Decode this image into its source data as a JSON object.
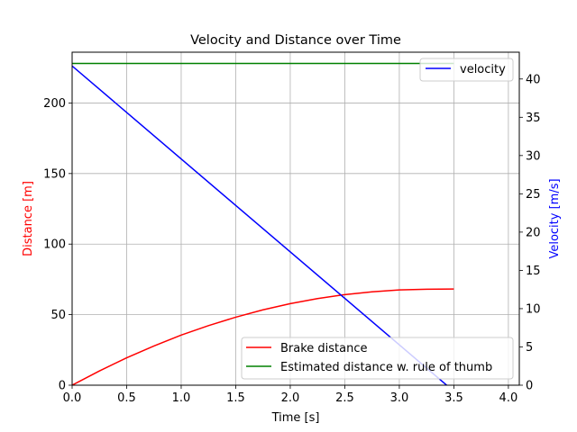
{
  "chart_data": {
    "type": "line",
    "title": "Velocity and Distance over Time",
    "xlabel": "Time [s]",
    "ylabel_left": "Distance [m]",
    "ylabel_right": "Velocity [m/s]",
    "xlim": [
      0,
      4.1
    ],
    "ylim_left": [
      0,
      236
    ],
    "ylim_right": [
      0,
      43.5
    ],
    "x_ticks": [
      0,
      0.5,
      1.0,
      1.5,
      2.0,
      2.5,
      3.0,
      3.5,
      4.0
    ],
    "x_tick_labels": [
      "0.0",
      "0.5",
      "1.0",
      "1.5",
      "2.0",
      "2.5",
      "3.0",
      "3.5",
      "4.0"
    ],
    "y_left_ticks": [
      0,
      50,
      100,
      150,
      200
    ],
    "y_left_tick_labels": [
      "0",
      "50",
      "100",
      "150",
      "200"
    ],
    "y_right_ticks": [
      0,
      5,
      10,
      15,
      20,
      25,
      30,
      35,
      40
    ],
    "y_right_tick_labels": [
      "0",
      "5",
      "10",
      "15",
      "20",
      "25",
      "30",
      "35",
      "40"
    ],
    "grid": true,
    "colors": {
      "left_label": "#ff0000",
      "right_label": "#0000ff"
    },
    "series_left": [
      {
        "name": "Brake distance",
        "color": "#ff0000",
        "x": [
          0,
          0.25,
          0.5,
          0.75,
          1.0,
          1.25,
          1.5,
          1.75,
          2.0,
          2.25,
          2.5,
          2.75,
          3.0,
          3.25,
          3.5
        ],
        "y": [
          0,
          10.1,
          19.4,
          27.8,
          35.5,
          42.2,
          48.2,
          53.4,
          57.8,
          61.4,
          64.2,
          66.2,
          67.5,
          68.0,
          68.2
        ]
      },
      {
        "name": "Estimated distance w. rule of thumb",
        "color": "#008000",
        "x": [
          0,
          3.5
        ],
        "y": [
          228,
          228
        ]
      }
    ],
    "series_right": [
      {
        "name": "velocity",
        "color": "#0000ff",
        "x": [
          0,
          3.5
        ],
        "y": [
          41.7,
          -0.8
        ]
      }
    ],
    "legend_upper": {
      "placement": "top-right",
      "entries": [
        "velocity"
      ]
    },
    "legend_lower": {
      "placement": "bottom-right",
      "entries": [
        "Brake distance",
        "Estimated distance w. rule of thumb"
      ]
    }
  }
}
